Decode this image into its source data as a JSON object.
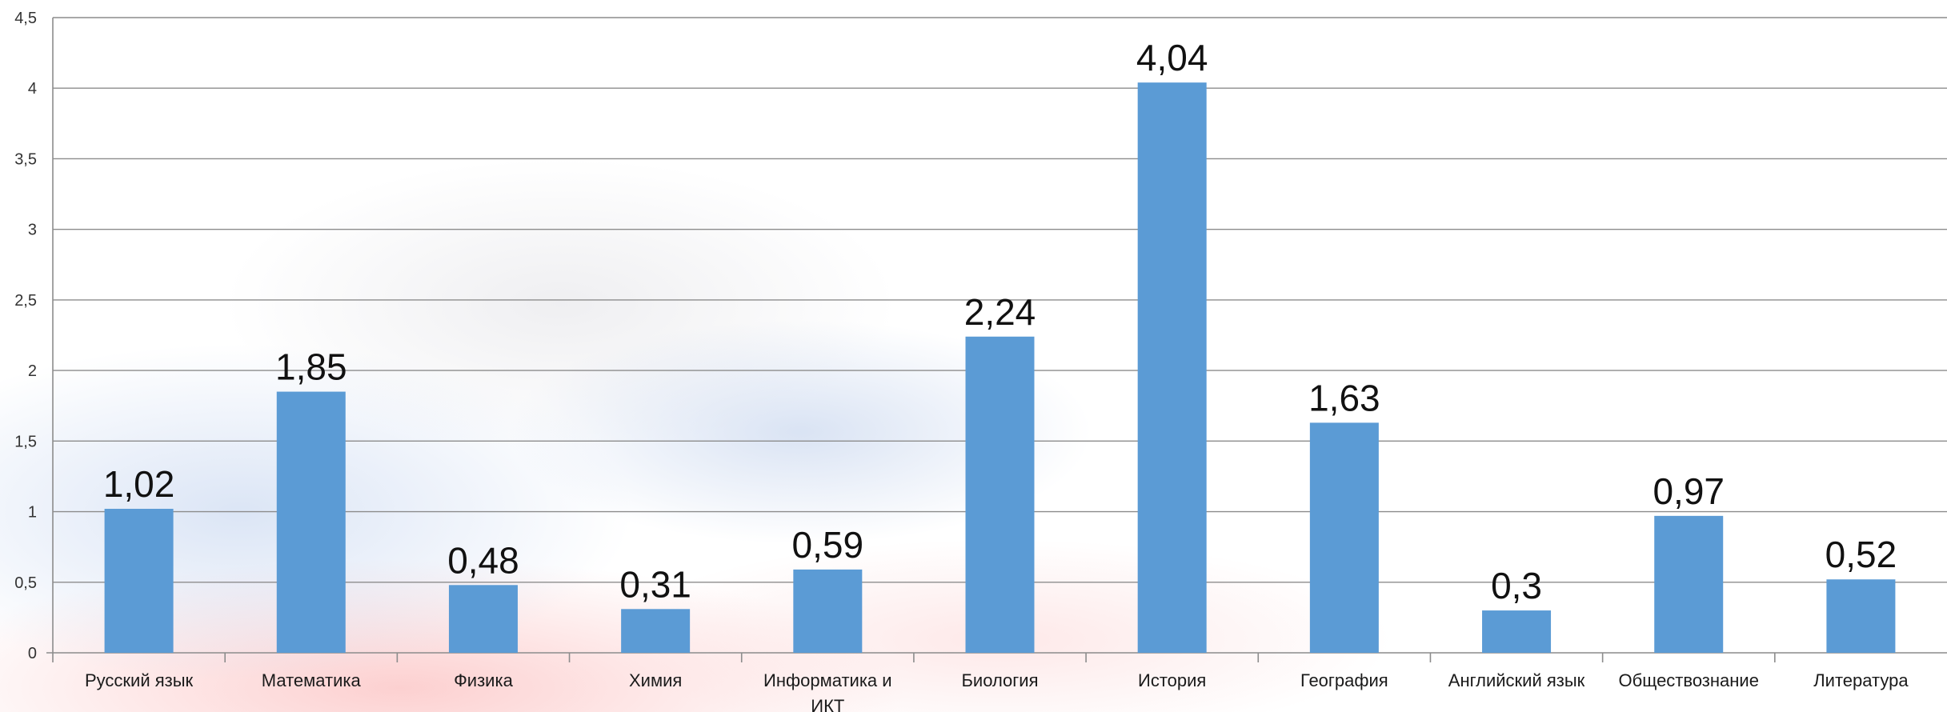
{
  "chart_data": {
    "type": "bar",
    "categories": [
      "Русский язык",
      "Математика",
      "Физика",
      "Химия",
      "Информатика и ИКТ",
      "Биология",
      "История",
      "География",
      "Английский язык",
      "Обществознание",
      "Литература"
    ],
    "category_lines": [
      [
        "Русский язык"
      ],
      [
        "Математика"
      ],
      [
        "Физика"
      ],
      [
        "Химия"
      ],
      [
        "Информатика и",
        "ИКТ"
      ],
      [
        "Биология"
      ],
      [
        "История"
      ],
      [
        "География"
      ],
      [
        "Английский язык"
      ],
      [
        "Обществознание"
      ],
      [
        "Литература"
      ]
    ],
    "values": [
      1.02,
      1.85,
      0.48,
      0.31,
      0.59,
      2.24,
      4.04,
      1.63,
      0.3,
      0.97,
      0.52
    ],
    "data_labels": [
      "1,02",
      "1,85",
      "0,48",
      "0,31",
      "0,59",
      "2,24",
      "4,04",
      "1,63",
      "0,3",
      "0,97",
      "0,52"
    ],
    "ylim": [
      0,
      4.5
    ],
    "yticks": [
      0,
      0.5,
      1,
      1.5,
      2,
      2.5,
      3,
      3.5,
      4,
      4.5
    ],
    "ytick_labels": [
      "0",
      "0,5",
      "1",
      "1,5",
      "2",
      "2,5",
      "3",
      "3,5",
      "4",
      "4,5"
    ],
    "grid": true,
    "title": "",
    "xlabel": "",
    "ylabel": "",
    "bar_color": "#5b9bd5"
  }
}
